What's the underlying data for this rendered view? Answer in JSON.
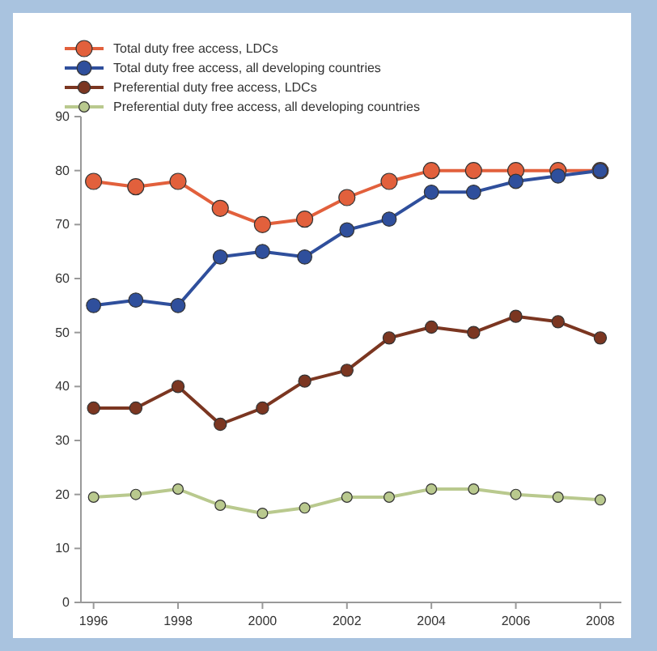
{
  "chart_data": {
    "type": "line",
    "x": [
      1996,
      1997,
      1998,
      1999,
      2000,
      2001,
      2002,
      2003,
      2004,
      2005,
      2006,
      2007,
      2008
    ],
    "xlim": [
      1995.7,
      2008.5
    ],
    "xticks": [
      1996,
      1998,
      2000,
      2002,
      2004,
      2006,
      2008
    ],
    "ylim": [
      0,
      90
    ],
    "yticks": [
      0,
      10,
      20,
      30,
      40,
      50,
      60,
      70,
      80,
      90
    ],
    "grid": false,
    "legend": "top left",
    "marker": "circle",
    "line_style": "solid",
    "series": [
      {
        "name": "Total duty free access, LDCs",
        "color": "#e2603c",
        "values": [
          78,
          77,
          78,
          73,
          70,
          71,
          75,
          78,
          80,
          80,
          80,
          80,
          80
        ]
      },
      {
        "name": "Total duty free access, all developing countries",
        "color": "#2f4f9c",
        "values": [
          55,
          56,
          55,
          64,
          65,
          64,
          69,
          71,
          76,
          76,
          78,
          79,
          80
        ]
      },
      {
        "name": "Preferential duty free access, LDCs",
        "color": "#7b3621",
        "values": [
          36,
          36,
          40,
          33,
          36,
          41,
          43,
          49,
          51,
          50,
          53,
          52,
          49
        ]
      },
      {
        "name": "Preferential duty free access, all developing countries",
        "color": "#b9c98e",
        "values": [
          19.5,
          20,
          21,
          18,
          16.5,
          17.5,
          19.5,
          19.5,
          21,
          21,
          20,
          19.5,
          19
        ]
      }
    ]
  }
}
